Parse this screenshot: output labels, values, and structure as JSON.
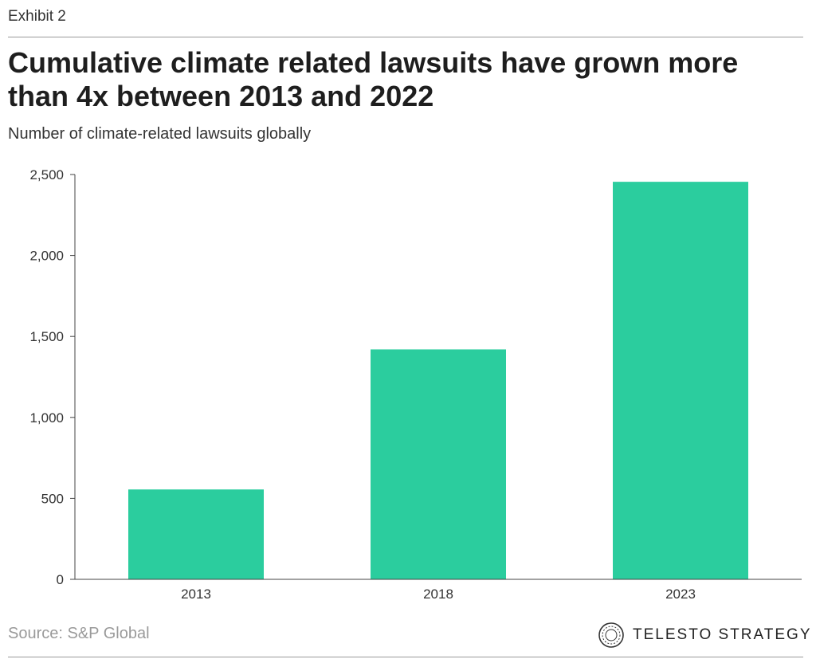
{
  "header": {
    "exhibit": "Exhibit 2"
  },
  "chart_data": {
    "type": "bar",
    "title": "Cumulative climate related lawsuits have grown more than 4x between 2013 and 2022",
    "subtitle": "Number of climate-related lawsuits globally",
    "categories": [
      "2013",
      "2018",
      "2023"
    ],
    "values": [
      555,
      1420,
      2455
    ],
    "ylim": [
      0,
      2500
    ],
    "yticks": [
      0,
      500,
      1000,
      1500,
      2000,
      2500
    ],
    "ytick_labels": [
      "0",
      "500",
      "1,000",
      "1,500",
      "2,000",
      "2,500"
    ],
    "grid": false,
    "bar_color": "#2bcd9e"
  },
  "footer": {
    "source": "Source: S&P Global",
    "brand": "TELESTO STRATEGY",
    "logo_icon": "telesto-logo-icon"
  }
}
